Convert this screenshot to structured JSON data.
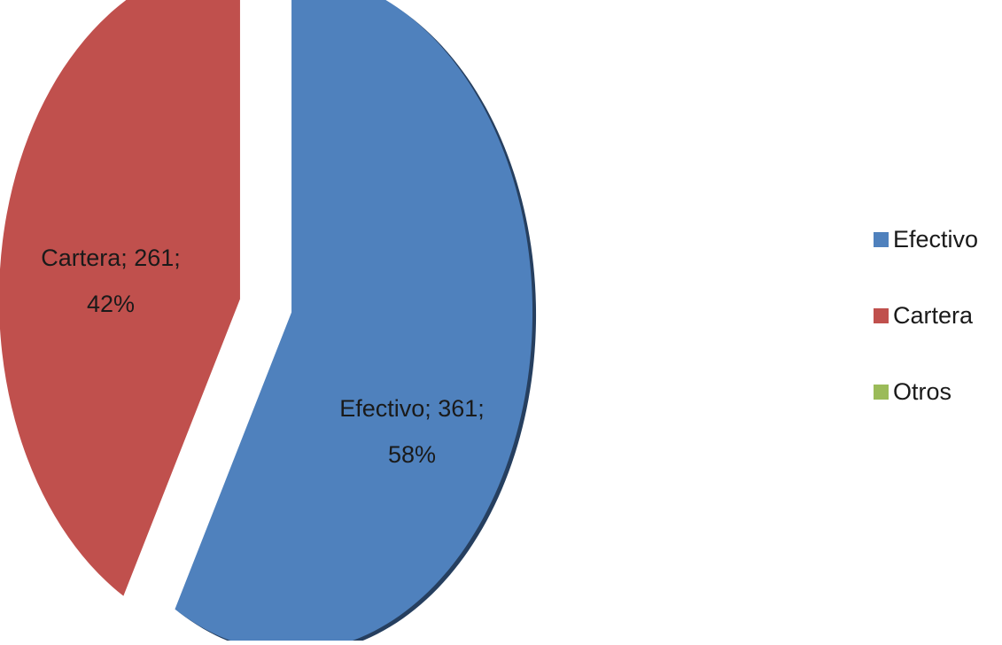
{
  "chart_data": {
    "type": "pie",
    "exploded": true,
    "legend_position": "right",
    "slices": [
      {
        "label": "Efectivo",
        "value": 361,
        "percent": 58,
        "color": "#4f81bd",
        "data_label_lines": [
          "Efectivo; 361;",
          "58%"
        ]
      },
      {
        "label": "Cartera",
        "value": 261,
        "percent": 42,
        "color": "#c0504d",
        "data_label_lines": [
          "Cartera; 261;",
          "42%"
        ]
      },
      {
        "label": "Otros",
        "value": 0,
        "percent": 0,
        "color": "#9bbb59",
        "data_label_lines": []
      }
    ],
    "legend": [
      {
        "label": "Efectivo",
        "color": "#4f81bd"
      },
      {
        "label": "Cartera",
        "color": "#c0504d"
      },
      {
        "label": "Otros",
        "color": "#9bbb59"
      }
    ]
  }
}
